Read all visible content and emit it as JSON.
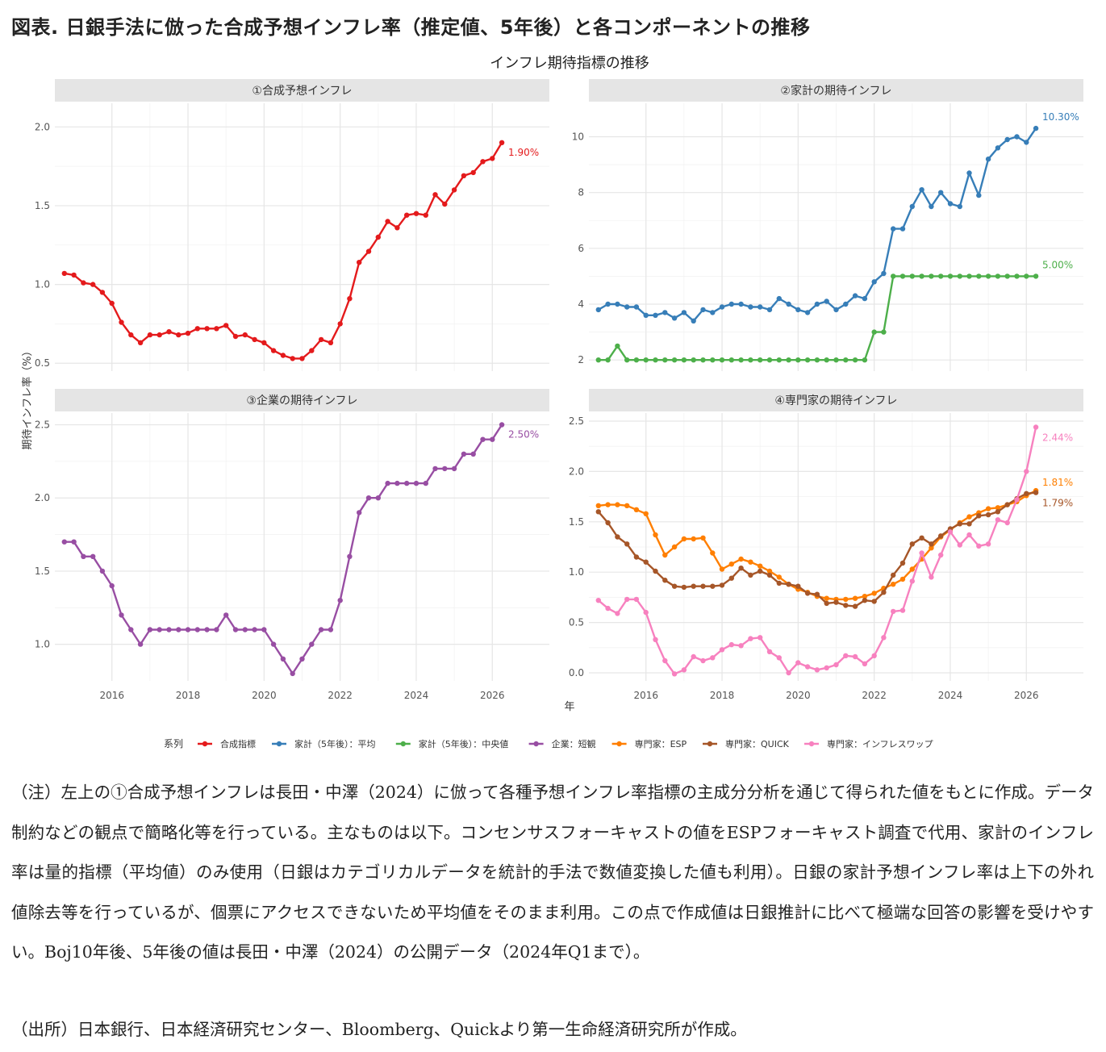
{
  "figure_title": "図表. 日銀手法に倣った合成予想インフレ率（推定値、5年後）と各コンポーネントの推移",
  "note": "（注）左上の①合成予想インフレは長田・中澤（2024）に倣って各種予想インフレ率指標の主成分分析を通じて得られた値をもとに作成。データ制約などの観点で簡略化等を行っている。主なものは以下。コンセンサスフォーキャストの値をESPフォーキャスト調査で代用、家計のインフレ率は量的指標（平均値）のみ使用（日銀はカテゴリカルデータを統計的手法で数値変換した値も利用）。日銀の家計予想インフレ率は上下の外れ値除去等を行っているが、個票にアクセスできないため平均値をそのまま利用。この点で作成値は日銀推計に比べて極端な回答の影響を受けやすい。Boj10年後、5年後の値は長田・中澤（2024）の公開データ（2024年Q1まで）。",
  "source": "（出所）日本銀行、日本経済研究センター、Bloomberg、Quickより第一生命経済研究所が作成。",
  "chart_data": {
    "type": "line",
    "title": "インフレ期待指標の推移",
    "xlabel": "年",
    "ylabel": "期待インフレ率（%）",
    "xlim": [
      2014.5,
      2027.5
    ],
    "x_ticks": [
      2016,
      2018,
      2020,
      2022,
      2024,
      2026
    ],
    "grid": true,
    "legend_title": "系列",
    "legend_position": "bottom",
    "x_start": 2014.75,
    "x_step": 0.25,
    "legend": [
      {
        "name": "合成指標",
        "color": "#e41a1c"
      },
      {
        "name": "家計（5年後）：平均",
        "color": "#377eb8"
      },
      {
        "name": "家計（5年後）：中央値",
        "color": "#4daf4a"
      },
      {
        "name": "企業：短観",
        "color": "#984ea3"
      },
      {
        "name": "専門家：ESP",
        "color": "#ff7f00"
      },
      {
        "name": "専門家：QUICK",
        "color": "#a65628"
      },
      {
        "name": "専門家：インフレスワップ",
        "color": "#f781bf"
      }
    ],
    "panels": [
      {
        "title": "①合成予想インフレ",
        "ylim": [
          0.45,
          2.15
        ],
        "y_ticks": [
          0.5,
          1.0,
          1.5,
          2.0
        ],
        "y_tick_labels": [
          "0.5",
          "1.0",
          "1.5",
          "2.0"
        ],
        "series": [
          {
            "name": "合成指標",
            "color": "#e41a1c",
            "end_label": "1.90%",
            "values": [
              1.07,
              1.06,
              1.01,
              1.0,
              0.95,
              0.88,
              0.76,
              0.68,
              0.63,
              0.68,
              0.68,
              0.7,
              0.68,
              0.69,
              0.72,
              0.72,
              0.72,
              0.74,
              0.67,
              0.68,
              0.65,
              0.63,
              0.58,
              0.55,
              0.53,
              0.53,
              0.58,
              0.65,
              0.63,
              0.75,
              0.91,
              1.14,
              1.21,
              1.3,
              1.4,
              1.36,
              1.44,
              1.45,
              1.44,
              1.57,
              1.51,
              1.6,
              1.69,
              1.71,
              1.78,
              1.8,
              1.9
            ]
          }
        ]
      },
      {
        "title": "②家計の期待インフレ",
        "ylim": [
          1.6,
          11.2
        ],
        "y_ticks": [
          2,
          4,
          6,
          8,
          10
        ],
        "y_tick_labels": [
          "2",
          "4",
          "6",
          "8",
          "10"
        ],
        "series": [
          {
            "name": "家計（5年後）：平均",
            "color": "#377eb8",
            "end_label": "10.30%",
            "values": [
              3.8,
              4.0,
              4.0,
              3.9,
              3.9,
              3.6,
              3.6,
              3.7,
              3.5,
              3.7,
              3.4,
              3.8,
              3.7,
              3.9,
              4.0,
              4.0,
              3.9,
              3.9,
              3.8,
              4.2,
              4.0,
              3.8,
              3.7,
              4.0,
              4.1,
              3.8,
              4.0,
              4.3,
              4.2,
              4.8,
              5.1,
              6.7,
              6.7,
              7.5,
              8.1,
              7.5,
              8.0,
              7.6,
              7.5,
              8.7,
              7.9,
              9.2,
              9.6,
              9.9,
              10.0,
              9.8,
              10.3
            ]
          },
          {
            "name": "家計（5年後）：中央値",
            "color": "#4daf4a",
            "end_label": "5.00%",
            "values": [
              2.0,
              2.0,
              2.5,
              2.0,
              2.0,
              2.0,
              2.0,
              2.0,
              2.0,
              2.0,
              2.0,
              2.0,
              2.0,
              2.0,
              2.0,
              2.0,
              2.0,
              2.0,
              2.0,
              2.0,
              2.0,
              2.0,
              2.0,
              2.0,
              2.0,
              2.0,
              2.0,
              2.0,
              2.0,
              3.0,
              3.0,
              5.0,
              5.0,
              5.0,
              5.0,
              5.0,
              5.0,
              5.0,
              5.0,
              5.0,
              5.0,
              5.0,
              5.0,
              5.0,
              5.0,
              5.0,
              5.0
            ]
          }
        ]
      },
      {
        "title": "③企業の期待インフレ",
        "ylim": [
          0.75,
          2.58
        ],
        "y_ticks": [
          1.0,
          1.5,
          2.0,
          2.5
        ],
        "y_tick_labels": [
          "1.0",
          "1.5",
          "2.0",
          "2.5"
        ],
        "series": [
          {
            "name": "企業：短観",
            "color": "#984ea3",
            "end_label": "2.50%",
            "values": [
              1.7,
              1.7,
              1.6,
              1.6,
              1.5,
              1.4,
              1.2,
              1.1,
              1.0,
              1.1,
              1.1,
              1.1,
              1.1,
              1.1,
              1.1,
              1.1,
              1.1,
              1.2,
              1.1,
              1.1,
              1.1,
              1.1,
              1.0,
              0.9,
              0.8,
              0.9,
              1.0,
              1.1,
              1.1,
              1.3,
              1.6,
              1.9,
              2.0,
              2.0,
              2.1,
              2.1,
              2.1,
              2.1,
              2.1,
              2.2,
              2.2,
              2.2,
              2.3,
              2.3,
              2.4,
              2.4,
              2.5
            ]
          }
        ]
      },
      {
        "title": "④専門家の期待インフレ",
        "ylim": [
          -0.08,
          2.58
        ],
        "y_ticks": [
          0.0,
          0.5,
          1.0,
          1.5,
          2.0,
          2.5
        ],
        "y_tick_labels": [
          "0.0",
          "0.5",
          "1.0",
          "1.5",
          "2.0",
          "2.5"
        ],
        "series": [
          {
            "name": "専門家：ESP",
            "color": "#ff7f00",
            "end_label": "1.81%",
            "values": [
              1.66,
              1.67,
              1.67,
              1.66,
              1.62,
              1.58,
              1.37,
              1.17,
              1.25,
              1.33,
              1.33,
              1.34,
              1.19,
              1.03,
              1.08,
              1.13,
              1.1,
              1.06,
              1.01,
              0.95,
              0.88,
              0.83,
              0.8,
              0.76,
              0.74,
              0.73,
              0.73,
              0.74,
              0.76,
              0.79,
              0.84,
              0.88,
              0.93,
              1.03,
              1.13,
              1.24,
              1.35,
              1.42,
              1.49,
              1.55,
              1.59,
              1.63,
              1.64,
              1.67,
              1.7,
              1.76,
              1.81
            ]
          },
          {
            "name": "専門家：QUICK",
            "color": "#a65628",
            "end_label": "1.79%",
            "values": [
              1.6,
              1.49,
              1.35,
              1.28,
              1.15,
              1.1,
              1.01,
              0.92,
              0.86,
              0.85,
              0.86,
              0.86,
              0.86,
              0.87,
              0.94,
              1.04,
              0.97,
              1.01,
              0.97,
              0.89,
              0.88,
              0.86,
              0.79,
              0.78,
              0.69,
              0.7,
              0.67,
              0.66,
              0.72,
              0.71,
              0.8,
              0.97,
              1.09,
              1.28,
              1.34,
              1.28,
              1.36,
              1.43,
              1.48,
              1.48,
              1.56,
              1.57,
              1.6,
              1.67,
              1.73,
              1.78,
              1.79
            ]
          },
          {
            "name": "専門家：インフレスワップ",
            "color": "#f781bf",
            "end_label": "2.44%",
            "values": [
              0.72,
              0.64,
              0.59,
              0.73,
              0.73,
              0.6,
              0.33,
              0.12,
              -0.01,
              0.03,
              0.16,
              0.12,
              0.15,
              0.23,
              0.28,
              0.27,
              0.34,
              0.35,
              0.21,
              0.15,
              0.0,
              0.1,
              0.06,
              0.03,
              0.05,
              0.08,
              0.17,
              0.16,
              0.09,
              0.17,
              0.35,
              0.61,
              0.62,
              0.91,
              1.19,
              0.95,
              1.17,
              1.4,
              1.27,
              1.37,
              1.26,
              1.28,
              1.52,
              1.49,
              1.72,
              2.0,
              2.44
            ]
          }
        ]
      }
    ]
  }
}
